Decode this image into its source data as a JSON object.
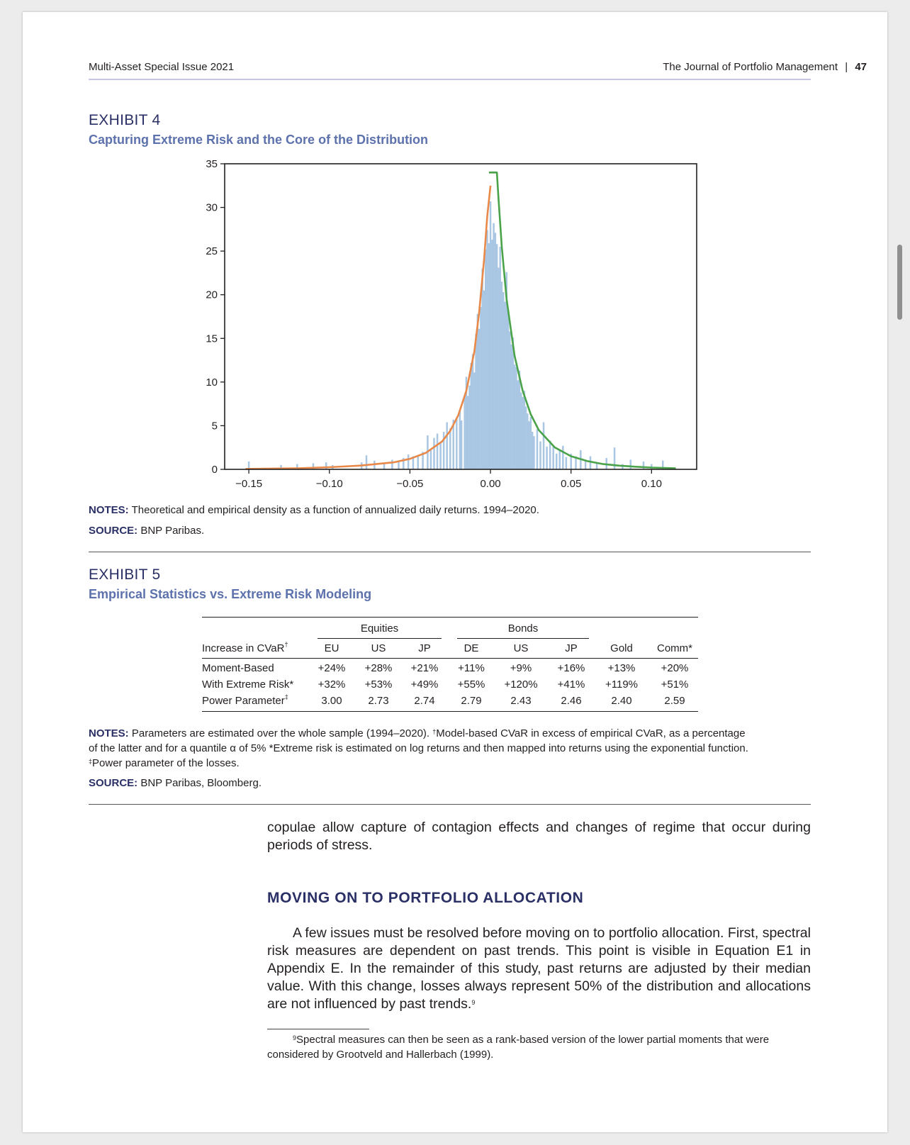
{
  "header": {
    "left": "Multi-Asset Special Issue 2021",
    "right_journal": "The Journal of Portfolio Management",
    "right_sep": "|",
    "page_number": "47"
  },
  "exhibit4": {
    "label": "EXHIBIT 4",
    "title": "Capturing Extreme Risk and the Core of the Distribution",
    "notes_label": "NOTES:",
    "notes_text": "Theoretical and empirical density as a function of annualized daily returns. 1994–2020.",
    "source_label": "SOURCE:",
    "source_text": "BNP Paribas."
  },
  "chart_data": {
    "type": "histogram",
    "xlim": [
      -0.165,
      0.128
    ],
    "ylim": [
      0,
      35
    ],
    "x_ticks": [
      -0.15,
      -0.1,
      -0.05,
      0.0,
      0.05,
      0.1
    ],
    "x_tick_labels": [
      "−0.15",
      "−0.10",
      "−0.05",
      "0.00",
      "0.05",
      "0.10"
    ],
    "y_ticks": [
      0,
      5,
      10,
      15,
      20,
      25,
      30,
      35
    ],
    "y_tick_labels": [
      "0",
      "5",
      "10",
      "15",
      "20",
      "25",
      "30",
      "35"
    ],
    "histogram": {
      "color": "#a9c6e3",
      "bins": [
        [
          -0.15,
          0.9
        ],
        [
          -0.13,
          0.5
        ],
        [
          -0.12,
          0.6
        ],
        [
          -0.11,
          0.7
        ],
        [
          -0.102,
          0.8
        ],
        [
          -0.098,
          0.5
        ],
        [
          -0.08,
          0.8
        ],
        [
          -0.077,
          1.6
        ],
        [
          -0.072,
          1.0
        ],
        [
          -0.066,
          0.6
        ],
        [
          -0.061,
          1.1
        ],
        [
          -0.057,
          1.0
        ],
        [
          -0.054,
          1.3
        ],
        [
          -0.051,
          1.7
        ],
        [
          -0.048,
          1.5
        ],
        [
          -0.045,
          1.6
        ],
        [
          -0.042,
          2.0
        ],
        [
          -0.039,
          3.9
        ],
        [
          -0.037,
          2.2
        ],
        [
          -0.035,
          3.6
        ],
        [
          -0.033,
          4.1
        ],
        [
          -0.031,
          3.0
        ],
        [
          -0.029,
          4.3
        ],
        [
          -0.027,
          5.4
        ],
        [
          -0.025,
          4.7
        ],
        [
          -0.023,
          5.7
        ],
        [
          -0.021,
          5.9
        ],
        [
          -0.019,
          6.8
        ],
        [
          -0.018,
          5.6
        ],
        [
          -0.016,
          8.3
        ],
        [
          -0.015,
          10.6
        ],
        [
          -0.014,
          8.4
        ],
        [
          -0.013,
          9.6
        ],
        [
          -0.012,
          12.2
        ],
        [
          -0.011,
          13.2
        ],
        [
          -0.01,
          11.1
        ],
        [
          -0.009,
          15.5
        ],
        [
          -0.008,
          17.8
        ],
        [
          -0.007,
          16.1
        ],
        [
          -0.006,
          18.6
        ],
        [
          -0.005,
          23.0
        ],
        [
          -0.004,
          20.5
        ],
        [
          -0.003,
          25.2
        ],
        [
          -0.002,
          27.4
        ],
        [
          -0.001,
          25.9
        ],
        [
          0.0,
          30.7
        ],
        [
          0.001,
          26.3
        ],
        [
          0.002,
          28.2
        ],
        [
          0.003,
          27.1
        ],
        [
          0.004,
          25.8
        ],
        [
          0.005,
          23.1
        ],
        [
          0.006,
          25.5
        ],
        [
          0.007,
          21.5
        ],
        [
          0.008,
          20.3
        ],
        [
          0.009,
          19.2
        ],
        [
          0.01,
          22.6
        ],
        [
          0.011,
          18.3
        ],
        [
          0.012,
          15.8
        ],
        [
          0.013,
          14.3
        ],
        [
          0.014,
          15.1
        ],
        [
          0.015,
          12.0
        ],
        [
          0.016,
          11.7
        ],
        [
          0.017,
          10.2
        ],
        [
          0.018,
          11.3
        ],
        [
          0.019,
          8.8
        ],
        [
          0.02,
          8.3
        ],
        [
          0.021,
          9.0
        ],
        [
          0.022,
          7.2
        ],
        [
          0.023,
          6.4
        ],
        [
          0.024,
          5.5
        ],
        [
          0.025,
          6.0
        ],
        [
          0.026,
          4.3
        ],
        [
          0.027,
          3.8
        ],
        [
          0.029,
          4.6
        ],
        [
          0.031,
          3.2
        ],
        [
          0.033,
          5.4
        ],
        [
          0.035,
          2.6
        ],
        [
          0.037,
          3.3
        ],
        [
          0.039,
          2.7
        ],
        [
          0.041,
          1.8
        ],
        [
          0.043,
          2.2
        ],
        [
          0.045,
          2.7
        ],
        [
          0.047,
          1.4
        ],
        [
          0.05,
          1.8
        ],
        [
          0.053,
          1.5
        ],
        [
          0.056,
          2.2
        ],
        [
          0.059,
          1.1
        ],
        [
          0.062,
          1.5
        ],
        [
          0.066,
          0.7
        ],
        [
          0.072,
          1.3
        ],
        [
          0.077,
          2.5
        ],
        [
          0.082,
          0.6
        ],
        [
          0.087,
          1.1
        ],
        [
          0.095,
          0.9
        ],
        [
          0.1,
          0.6
        ],
        [
          0.107,
          1.0
        ]
      ]
    },
    "series": [
      {
        "color": "#e8894a",
        "points": [
          [
            -0.152,
            0.05
          ],
          [
            -0.12,
            0.12
          ],
          [
            -0.1,
            0.24
          ],
          [
            -0.08,
            0.44
          ],
          [
            -0.06,
            0.8
          ],
          [
            -0.05,
            1.2
          ],
          [
            -0.04,
            1.9
          ],
          [
            -0.03,
            3.2
          ],
          [
            -0.025,
            4.4
          ],
          [
            -0.02,
            6.2
          ],
          [
            -0.015,
            9.0
          ],
          [
            -0.01,
            13.5
          ],
          [
            -0.007,
            18.0
          ],
          [
            -0.004,
            24.0
          ],
          [
            -0.002,
            29.0
          ],
          [
            0.0,
            32.5
          ]
        ]
      },
      {
        "color": "#4aa34a",
        "points": [
          [
            -0.001,
            34.0
          ],
          [
            0.004,
            34.0
          ],
          [
            0.005,
            31.0
          ],
          [
            0.007,
            25.5
          ],
          [
            0.01,
            19.5
          ],
          [
            0.015,
            13.0
          ],
          [
            0.02,
            9.0
          ],
          [
            0.025,
            6.3
          ],
          [
            0.03,
            4.5
          ],
          [
            0.04,
            2.5
          ],
          [
            0.05,
            1.5
          ],
          [
            0.06,
            0.95
          ],
          [
            0.07,
            0.6
          ],
          [
            0.08,
            0.42
          ],
          [
            0.09,
            0.3
          ],
          [
            0.1,
            0.2
          ],
          [
            0.115,
            0.12
          ]
        ]
      }
    ]
  },
  "exhibit5": {
    "label": "EXHIBIT 5",
    "title": "Empirical Statistics vs. Extreme Risk Modeling",
    "group_equities": "Equities",
    "group_bonds": "Bonds",
    "row_header": "Increase in CVaR",
    "row_header_mark": "†",
    "columns": [
      "EU",
      "US",
      "JP",
      "DE",
      "US",
      "JP",
      "Gold",
      "Comm*"
    ],
    "rows": [
      {
        "label": "Moment-Based",
        "mark": "",
        "values": [
          "+24%",
          "+28%",
          "+21%",
          "+11%",
          "+9%",
          "+16%",
          "+13%",
          "+20%"
        ]
      },
      {
        "label": "With Extreme Risk*",
        "mark": "",
        "values": [
          "+32%",
          "+53%",
          "+49%",
          "+55%",
          "+120%",
          "+41%",
          "+119%",
          "+51%"
        ]
      },
      {
        "label": "Power Parameter",
        "mark": "‡",
        "values": [
          "3.00",
          "2.73",
          "2.74",
          "2.79",
          "2.43",
          "2.46",
          "2.40",
          "2.59"
        ]
      }
    ],
    "notes_label": "NOTES:",
    "notes_p1": "Parameters are estimated over the whole sample (1994–2020).",
    "notes_mark1": "†",
    "notes_p2": "Model-based CVaR in excess of empirical CVaR, as a percentage of the latter and for a quantile α of 5% *Extreme risk is estimated on log returns and then mapped into returns using the exponential function.",
    "notes_mark2": "‡",
    "notes_p3": "Power parameter of the losses.",
    "source_label": "SOURCE:",
    "source_text": "BNP Paribas, Bloomberg."
  },
  "body": {
    "para1": "copulae allow capture of contagion effects and changes of regime that occur during periods of stress.",
    "section_heading": "MOVING ON TO PORTFOLIO ALLOCATION",
    "para2": "A few issues must be resolved before moving on to portfolio allocation. First, spectral risk measures are dependent on past trends. This point is visible in Equation E1 in Appendix E. In the remainder of this study, past returns are adjusted by their median value. With this change, losses always represent 50% of the distribution and allocations are not influenced by past trends.",
    "para2_fn_mark": "9",
    "footnote_mark": "9",
    "footnote_text": "Spectral measures can then be seen as a rank-based version of the lower partial moments that were considered by Grootveld and Hallerbach (1999)."
  }
}
